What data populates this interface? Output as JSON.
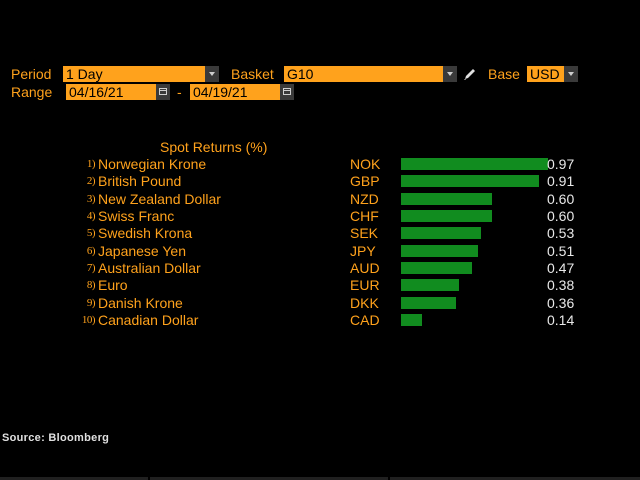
{
  "controls": {
    "period_label": "Period",
    "period_value": "1 Day",
    "basket_label": "Basket",
    "basket_value": "G10",
    "base_label": "Base",
    "base_value": "USD",
    "range_label": "Range",
    "range_start": "04/16/21",
    "range_separator": "-",
    "range_end": "04/19/21",
    "edit_icon": "pencil-icon",
    "dropdown_icon": "chevron-down-icon",
    "calendar_icon": "calendar-icon"
  },
  "chart_data": {
    "type": "bar",
    "title": "Spot Returns (%)",
    "categories": [
      "Norwegian Krone",
      "British Pound",
      "New Zealand Dollar",
      "Swiss Franc",
      "Swedish Krona",
      "Japanese Yen",
      "Australian Dollar",
      "Euro",
      "Danish Krone",
      "Canadian Dollar"
    ],
    "ranks": [
      "1)",
      "2)",
      "3)",
      "4)",
      "5)",
      "6)",
      "7)",
      "8)",
      "9)",
      "10)"
    ],
    "codes": [
      "NOK",
      "GBP",
      "NZD",
      "CHF",
      "SEK",
      "JPY",
      "AUD",
      "EUR",
      "DKK",
      "CAD"
    ],
    "values": [
      0.97,
      0.91,
      0.6,
      0.6,
      0.53,
      0.51,
      0.47,
      0.38,
      0.36,
      0.14
    ],
    "value_labels": [
      "0.97",
      "0.91",
      "0.60",
      "0.60",
      "0.53",
      "0.51",
      "0.47",
      "0.38",
      "0.36",
      "0.14"
    ],
    "xlim": [
      0,
      0.97
    ],
    "bar_color": "#118c1f"
  },
  "footer": {
    "source": "Source: Bloomberg"
  },
  "colors": {
    "accent": "#ffa21c",
    "background": "#000000",
    "value_text": "#e8e8e8"
  }
}
